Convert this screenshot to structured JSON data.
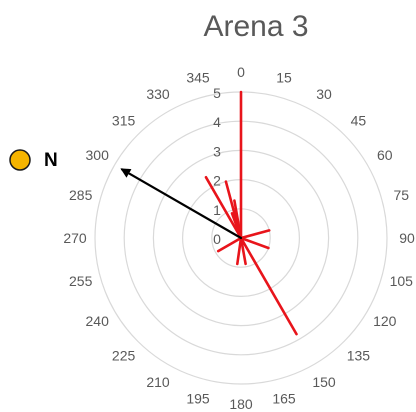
{
  "chart_data": {
    "type": "radar",
    "title": "Arena 3",
    "angle_ticks": [
      0,
      15,
      30,
      45,
      60,
      75,
      90,
      105,
      120,
      135,
      150,
      165,
      180,
      195,
      210,
      225,
      240,
      255,
      270,
      285,
      300,
      315,
      330,
      345
    ],
    "radial_ticks": [
      0,
      1,
      2,
      3,
      4,
      5
    ],
    "rlim": [
      0,
      5
    ],
    "grid": true,
    "series": [
      {
        "color": "#e8141b",
        "values": [
          {
            "angle": 0,
            "r": 5
          },
          {
            "angle": 330,
            "r": 2.4
          },
          {
            "angle": 345,
            "r": 2.0
          },
          {
            "angle": 350,
            "r": 1.3
          },
          {
            "angle": 340,
            "r": 0.9
          },
          {
            "angle": 75,
            "r": 1.0
          },
          {
            "angle": 110,
            "r": 1.0
          },
          {
            "angle": 150,
            "r": 3.8
          },
          {
            "angle": 170,
            "r": 0.9
          },
          {
            "angle": 188,
            "r": 0.9
          },
          {
            "angle": 240,
            "r": 0.9
          }
        ]
      },
      {
        "color": "#000000",
        "arrow": true,
        "values": [
          {
            "angle": 300,
            "r": 4.7
          }
        ]
      }
    ],
    "annotation": {
      "text": "N",
      "marker_color": "#f5b400"
    }
  }
}
